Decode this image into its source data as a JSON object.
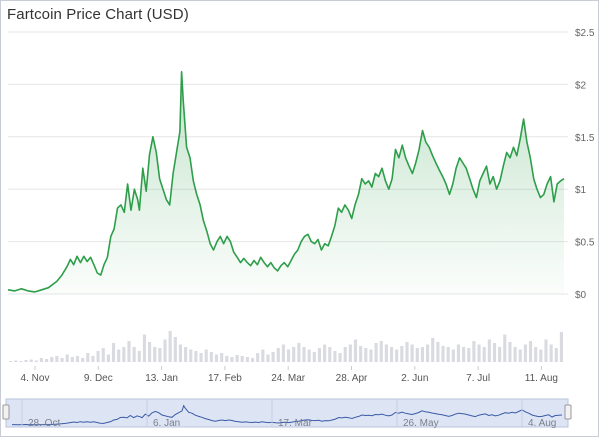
{
  "chart_data": {
    "type": "area",
    "title": "Fartcoin Price Chart (USD)",
    "xlabel": "",
    "ylabel": "",
    "ylim": [
      0,
      2.5
    ],
    "y_ticks": [
      "$0",
      "$0.5",
      "$1",
      "$1.5",
      "$2",
      "$2.5"
    ],
    "x_ticks": [
      "4. Nov",
      "9. Dec",
      "13. Jan",
      "17. Feb",
      "24. Mar",
      "28. Apr",
      "2. Jun",
      "7. Jul",
      "11. Aug"
    ],
    "navigator_ticks": [
      "28. Oct",
      "6. Jan",
      "17. Mar",
      "26. May",
      "4. Aug"
    ],
    "grid": true,
    "line_color": "#2e9e4a",
    "fill_color": "#2e9e4a",
    "volume_color": "#d9dbe0",
    "navigator_fill": "#dde4f4",
    "series": [
      {
        "values": [
          [
            0.0,
            0.04
          ],
          [
            0.67,
            0.03
          ],
          [
            1.33,
            0.05
          ],
          [
            2.0,
            0.03
          ],
          [
            2.67,
            0.02
          ],
          [
            3.33,
            0.04
          ],
          [
            4.0,
            0.06
          ],
          [
            4.83,
            0.12
          ],
          [
            5.33,
            0.18
          ],
          [
            5.83,
            0.26
          ],
          [
            6.17,
            0.33
          ],
          [
            6.5,
            0.28
          ],
          [
            6.83,
            0.36
          ],
          [
            7.17,
            0.3
          ],
          [
            7.5,
            0.36
          ],
          [
            7.83,
            0.31
          ],
          [
            8.17,
            0.35
          ],
          [
            8.5,
            0.28
          ],
          [
            8.83,
            0.2
          ],
          [
            9.17,
            0.18
          ],
          [
            9.5,
            0.28
          ],
          [
            9.83,
            0.35
          ],
          [
            10.17,
            0.55
          ],
          [
            10.5,
            0.62
          ],
          [
            10.83,
            0.82
          ],
          [
            11.17,
            0.85
          ],
          [
            11.5,
            0.78
          ],
          [
            11.83,
            1.05
          ],
          [
            12.17,
            0.8
          ],
          [
            12.5,
            1.0
          ],
          [
            12.83,
            0.9
          ],
          [
            13.0,
            0.8
          ],
          [
            13.33,
            1.2
          ],
          [
            13.67,
            0.98
          ],
          [
            14.0,
            1.33
          ],
          [
            14.33,
            1.5
          ],
          [
            14.67,
            1.35
          ],
          [
            15.0,
            1.1
          ],
          [
            15.33,
            1.0
          ],
          [
            15.67,
            0.9
          ],
          [
            16.0,
            0.85
          ],
          [
            16.33,
            1.15
          ],
          [
            16.67,
            1.35
          ],
          [
            17.0,
            1.55
          ],
          [
            17.17,
            2.12
          ],
          [
            17.33,
            1.85
          ],
          [
            17.67,
            1.4
          ],
          [
            18.0,
            1.3
          ],
          [
            18.33,
            1.08
          ],
          [
            18.67,
            0.95
          ],
          [
            19.0,
            0.85
          ],
          [
            19.33,
            0.7
          ],
          [
            19.67,
            0.6
          ],
          [
            20.0,
            0.48
          ],
          [
            20.33,
            0.42
          ],
          [
            20.67,
            0.5
          ],
          [
            21.0,
            0.55
          ],
          [
            21.33,
            0.48
          ],
          [
            21.67,
            0.55
          ],
          [
            22.0,
            0.5
          ],
          [
            22.33,
            0.4
          ],
          [
            22.67,
            0.35
          ],
          [
            23.0,
            0.3
          ],
          [
            23.33,
            0.34
          ],
          [
            23.67,
            0.3
          ],
          [
            24.0,
            0.27
          ],
          [
            24.33,
            0.32
          ],
          [
            24.67,
            0.28
          ],
          [
            25.0,
            0.35
          ],
          [
            25.33,
            0.3
          ],
          [
            25.67,
            0.26
          ],
          [
            26.0,
            0.3
          ],
          [
            26.33,
            0.25
          ],
          [
            26.67,
            0.22
          ],
          [
            27.0,
            0.27
          ],
          [
            27.33,
            0.3
          ],
          [
            27.67,
            0.26
          ],
          [
            28.0,
            0.32
          ],
          [
            28.33,
            0.38
          ],
          [
            28.67,
            0.42
          ],
          [
            29.0,
            0.5
          ],
          [
            29.33,
            0.55
          ],
          [
            29.67,
            0.57
          ],
          [
            30.0,
            0.5
          ],
          [
            30.33,
            0.48
          ],
          [
            30.67,
            0.52
          ],
          [
            31.0,
            0.42
          ],
          [
            31.33,
            0.48
          ],
          [
            31.67,
            0.46
          ],
          [
            32.0,
            0.55
          ],
          [
            32.33,
            0.65
          ],
          [
            32.67,
            0.82
          ],
          [
            33.0,
            0.78
          ],
          [
            33.33,
            0.85
          ],
          [
            33.67,
            0.8
          ],
          [
            34.0,
            0.72
          ],
          [
            34.33,
            0.85
          ],
          [
            34.67,
            0.95
          ],
          [
            35.0,
            1.1
          ],
          [
            35.33,
            1.05
          ],
          [
            35.67,
            1.08
          ],
          [
            36.0,
            1.02
          ],
          [
            36.33,
            1.15
          ],
          [
            36.67,
            1.12
          ],
          [
            37.0,
            1.2
          ],
          [
            37.33,
            1.08
          ],
          [
            37.67,
            1.0
          ],
          [
            38.0,
            1.1
          ],
          [
            38.33,
            1.38
          ],
          [
            38.67,
            1.3
          ],
          [
            39.0,
            1.42
          ],
          [
            39.33,
            1.3
          ],
          [
            39.67,
            1.22
          ],
          [
            40.0,
            1.15
          ],
          [
            40.33,
            1.25
          ],
          [
            40.67,
            1.38
          ],
          [
            41.0,
            1.56
          ],
          [
            41.33,
            1.45
          ],
          [
            41.67,
            1.4
          ],
          [
            42.0,
            1.32
          ],
          [
            42.33,
            1.25
          ],
          [
            42.67,
            1.18
          ],
          [
            43.0,
            1.12
          ],
          [
            43.33,
            1.05
          ],
          [
            43.67,
            0.95
          ],
          [
            44.0,
            1.05
          ],
          [
            44.33,
            1.2
          ],
          [
            44.67,
            1.3
          ],
          [
            45.0,
            1.25
          ],
          [
            45.33,
            1.2
          ],
          [
            45.67,
            1.1
          ],
          [
            46.0,
            1.0
          ],
          [
            46.33,
            0.92
          ],
          [
            46.67,
            1.08
          ],
          [
            47.0,
            1.15
          ],
          [
            47.33,
            1.22
          ],
          [
            47.67,
            1.05
          ],
          [
            48.0,
            1.12
          ],
          [
            48.33,
            1.0
          ],
          [
            48.67,
            1.08
          ],
          [
            49.0,
            1.22
          ],
          [
            49.33,
            1.35
          ],
          [
            49.67,
            1.3
          ],
          [
            50.0,
            1.4
          ],
          [
            50.33,
            1.32
          ],
          [
            50.67,
            1.48
          ],
          [
            51.0,
            1.67
          ],
          [
            51.33,
            1.45
          ],
          [
            51.67,
            1.3
          ],
          [
            52.0,
            1.1
          ],
          [
            52.33,
            1.0
          ],
          [
            52.67,
            0.92
          ],
          [
            53.0,
            0.95
          ],
          [
            53.33,
            1.05
          ],
          [
            53.67,
            1.12
          ],
          [
            54.0,
            0.88
          ],
          [
            54.33,
            1.05
          ],
          [
            54.67,
            1.08
          ],
          [
            55.0,
            1.1
          ]
        ]
      }
    ],
    "volume": [
      0.02,
      0.03,
      0.02,
      0.04,
      0.05,
      0.03,
      0.08,
      0.06,
      0.1,
      0.12,
      0.08,
      0.15,
      0.1,
      0.12,
      0.08,
      0.18,
      0.12,
      0.22,
      0.28,
      0.15,
      0.38,
      0.25,
      0.3,
      0.42,
      0.3,
      0.22,
      0.55,
      0.4,
      0.3,
      0.28,
      0.45,
      0.62,
      0.5,
      0.35,
      0.3,
      0.25,
      0.22,
      0.18,
      0.25,
      0.2,
      0.15,
      0.18,
      0.12,
      0.1,
      0.14,
      0.12,
      0.1,
      0.08,
      0.18,
      0.25,
      0.15,
      0.2,
      0.28,
      0.35,
      0.25,
      0.3,
      0.38,
      0.3,
      0.25,
      0.2,
      0.28,
      0.35,
      0.3,
      0.22,
      0.18,
      0.3,
      0.35,
      0.45,
      0.32,
      0.28,
      0.25,
      0.38,
      0.42,
      0.35,
      0.3,
      0.25,
      0.32,
      0.4,
      0.35,
      0.28,
      0.3,
      0.35,
      0.48,
      0.4,
      0.32,
      0.3,
      0.25,
      0.35,
      0.3,
      0.28,
      0.42,
      0.35,
      0.3,
      0.45,
      0.38,
      0.3,
      0.55,
      0.4,
      0.3,
      0.25,
      0.35,
      0.42,
      0.3,
      0.25,
      0.45,
      0.35,
      0.28,
      0.6
    ]
  }
}
